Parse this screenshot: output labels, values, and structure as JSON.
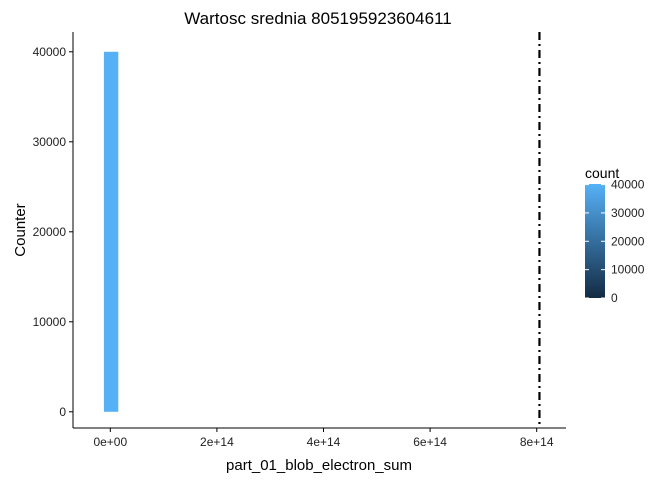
{
  "chart_data": {
    "type": "bar",
    "title": "Wartosc srednia 805195923604611",
    "xlabel": "part_01_blob_electron_sum",
    "ylabel": "Counter",
    "x_ticks": [
      "0e+00",
      "2e+14",
      "4e+14",
      "6e+14",
      "8e+14"
    ],
    "x_tick_values": [
      0,
      200000000000000,
      400000000000000,
      600000000000000,
      800000000000000
    ],
    "y_ticks": [
      "0",
      "10000",
      "20000",
      "30000",
      "40000"
    ],
    "y_tick_values": [
      0,
      10000,
      20000,
      30000,
      40000
    ],
    "xlim": [
      -70000000000000,
      855000000000000
    ],
    "ylim": [
      -1800,
      42200
    ],
    "bars": [
      {
        "x_start": -12000000000000,
        "x_end": 15000000000000,
        "count": 40000
      }
    ],
    "vline": {
      "x": 805195923604611,
      "style": "dotdash"
    },
    "legend": {
      "title": "count",
      "labels": [
        "0",
        "10000",
        "20000",
        "30000",
        "40000"
      ],
      "values": [
        0,
        10000,
        20000,
        30000,
        40000
      ],
      "range": [
        0,
        40200
      ],
      "color_low": "#132B43",
      "color_high": "#56B1F7",
      "placement": "right"
    },
    "grid": false
  }
}
